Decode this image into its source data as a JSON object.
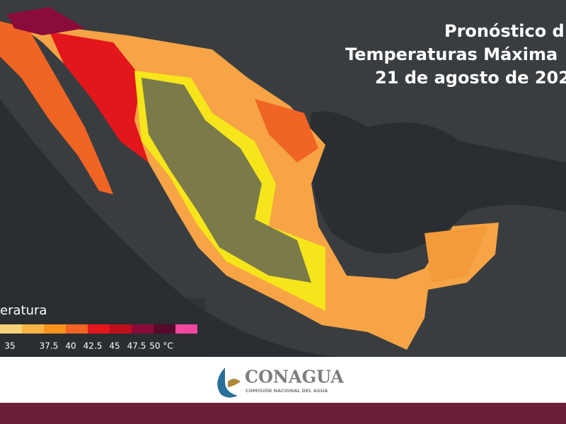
{
  "header": {
    "title_lines": [
      "Pronóstico d",
      "Temperaturas Máxima",
      "21 de agosto de 202"
    ]
  },
  "legend": {
    "title": "eratura",
    "colors": [
      "#f6d27a",
      "#f8b445",
      "#f7931e",
      "#f06424",
      "#e3161c",
      "#bf0f1e",
      "#8a0c3a",
      "#560a2c",
      "#f2479f"
    ],
    "labels": [
      "35",
      "37.5",
      "40",
      "42.5",
      "45",
      "47.5",
      "50 °C"
    ]
  },
  "footer": {
    "logo_name": "CONAGUA",
    "logo_subtitle": "COMISIÓN NACIONAL DEL AGUA"
  }
}
